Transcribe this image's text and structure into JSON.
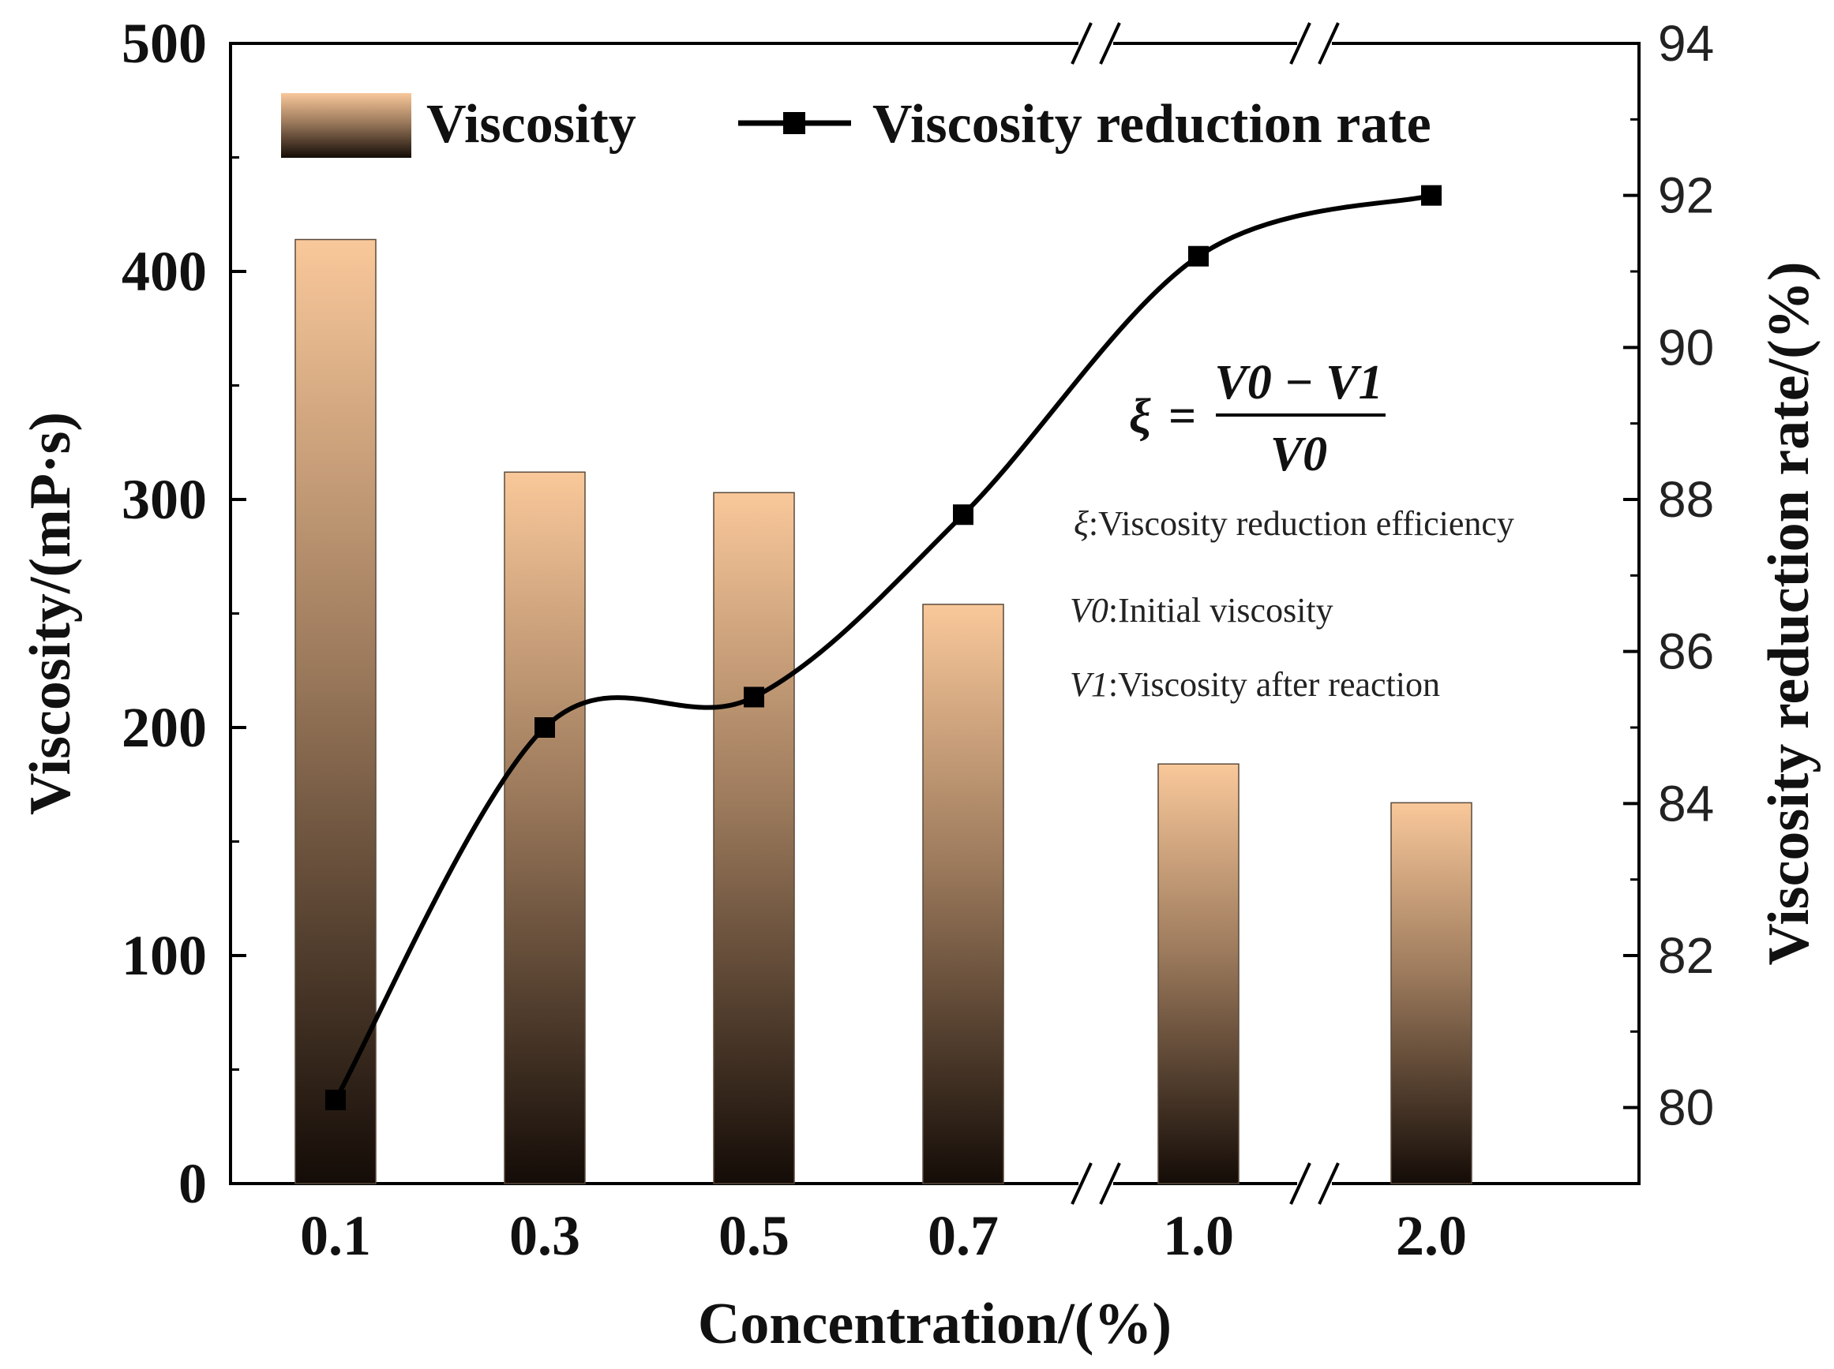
{
  "chart_data": {
    "type": "bar",
    "categories": [
      "0.1",
      "0.3",
      "0.5",
      "0.7",
      "1.0",
      "2.0"
    ],
    "series": [
      {
        "name": "Viscosity",
        "type": "bar",
        "axis": "left",
        "values": [
          414,
          312,
          303,
          254,
          184,
          167
        ]
      },
      {
        "name": "Viscosity reduction rate",
        "type": "line",
        "axis": "right",
        "values": [
          80.1,
          85.0,
          85.4,
          87.8,
          91.2,
          92.0
        ]
      }
    ],
    "xlabel": "Concentration/(%)",
    "ylabel": "Viscosity/(mP·s)",
    "y2label": "Viscosity reduction rate/(%)",
    "ylim": [
      0,
      500
    ],
    "y2lim": [
      79,
      94
    ],
    "yticks": [
      "0",
      "100",
      "200",
      "300",
      "400",
      "500"
    ],
    "y2ticks": [
      "80",
      "82",
      "84",
      "86",
      "88",
      "90",
      "92",
      "94"
    ],
    "axis_break": "//",
    "legend_position": "top",
    "colors": {
      "bar_top": "#f9c89a",
      "bar_mid": "#9c7a5c",
      "bar_bottom": "#140c07",
      "line": "#000000"
    },
    "formula": {
      "symbol": "ξ",
      "equals": "=",
      "numerator": "V0 − V1",
      "denominator": "V0"
    },
    "annotations": [
      {
        "symbol": "ξ",
        "text": ":Viscosity reduction efficiency"
      },
      {
        "symbol": "V0",
        "text": ":Initial viscosity"
      },
      {
        "symbol": "V1",
        "text": ":Viscosity after reaction"
      }
    ]
  }
}
